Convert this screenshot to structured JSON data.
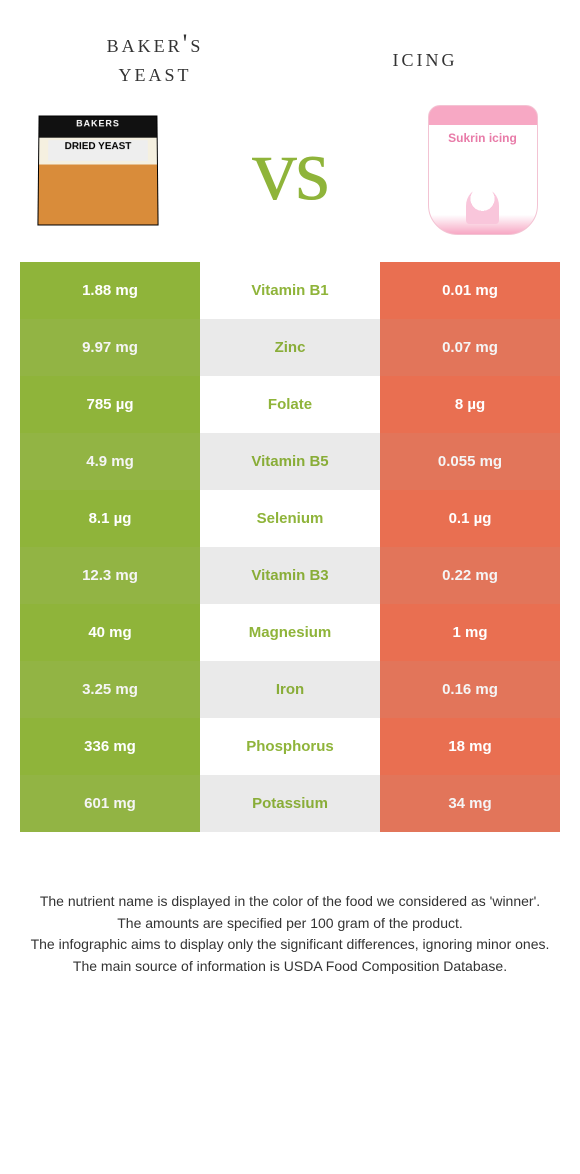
{
  "left": {
    "title_line1": "baker's",
    "title_line2": "yeast",
    "color": "#8fb43a",
    "alt_color": "#98bb47",
    "box_top": "BAKERS",
    "box_label": "DRIED YEAST"
  },
  "right": {
    "title": "icing",
    "color": "#e96f51",
    "alt_color": "#eb7a5e",
    "bag_brand": "Sukrin icing"
  },
  "vs": "vs",
  "mid_bg": "#ffffff",
  "mid_alt_bg": "#f4f4f4",
  "nutrient_color_map_note": "winner color on nutrient name",
  "rows": [
    {
      "nutrient": "Vitamin B1",
      "left": "1.88 mg",
      "right": "0.01 mg",
      "winner": "left"
    },
    {
      "nutrient": "Zinc",
      "left": "9.97 mg",
      "right": "0.07 mg",
      "winner": "left"
    },
    {
      "nutrient": "Folate",
      "left": "785 µg",
      "right": "8 µg",
      "winner": "left"
    },
    {
      "nutrient": "Vitamin B5",
      "left": "4.9 mg",
      "right": "0.055 mg",
      "winner": "left"
    },
    {
      "nutrient": "Selenium",
      "left": "8.1 µg",
      "right": "0.1 µg",
      "winner": "left"
    },
    {
      "nutrient": "Vitamin B3",
      "left": "12.3 mg",
      "right": "0.22 mg",
      "winner": "left"
    },
    {
      "nutrient": "Magnesium",
      "left": "40 mg",
      "right": "1 mg",
      "winner": "left"
    },
    {
      "nutrient": "Iron",
      "left": "3.25 mg",
      "right": "0.16 mg",
      "winner": "left"
    },
    {
      "nutrient": "Phosphorus",
      "left": "336 mg",
      "right": "18 mg",
      "winner": "left"
    },
    {
      "nutrient": "Potassium",
      "left": "601 mg",
      "right": "34 mg",
      "winner": "left"
    }
  ],
  "footer": [
    "The nutrient name is displayed in the color of the food we considered as 'winner'.",
    "The amounts are specified per 100 gram of the product.",
    "The infographic aims to display only the significant differences, ignoring minor ones.",
    "The main source of information is USDA Food Composition Database."
  ]
}
